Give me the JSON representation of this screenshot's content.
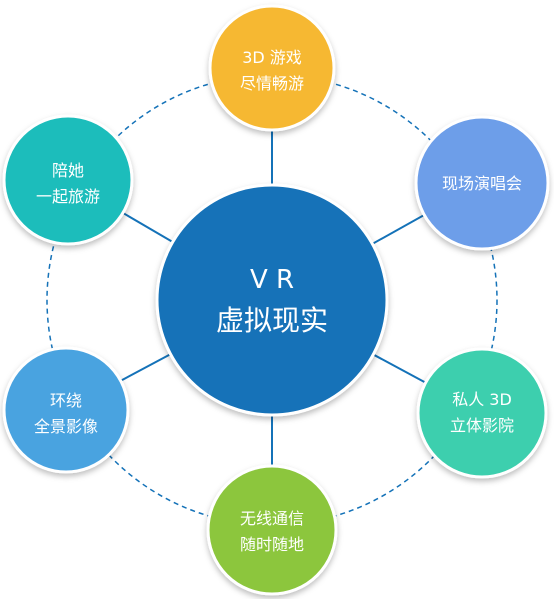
{
  "center": {
    "line1": "V R",
    "line2": "虚拟现实",
    "color": "#1472b8"
  },
  "nodes": [
    {
      "id": "games",
      "lines": [
        "3D 游戏",
        "尽情畅游"
      ],
      "color": "#f6b830"
    },
    {
      "id": "concert",
      "lines": [
        "现场演唱会"
      ],
      "color": "#6d9ee9"
    },
    {
      "id": "cinema",
      "lines": [
        "私人 3D",
        "立体影院"
      ],
      "color": "#3dcfae"
    },
    {
      "id": "anywhere",
      "lines": [
        "无线通信",
        "随时随地"
      ],
      "color": "#8cc63e"
    },
    {
      "id": "panorama",
      "lines": [
        "环绕",
        "全景影像"
      ],
      "color": "#4aa3e0"
    },
    {
      "id": "travel",
      "lines": [
        "陪她",
        "一起旅游"
      ],
      "color": "#1bbdbb"
    }
  ],
  "styles": {
    "connector_color": "#1472b8",
    "ring_color": "#1472b8"
  }
}
